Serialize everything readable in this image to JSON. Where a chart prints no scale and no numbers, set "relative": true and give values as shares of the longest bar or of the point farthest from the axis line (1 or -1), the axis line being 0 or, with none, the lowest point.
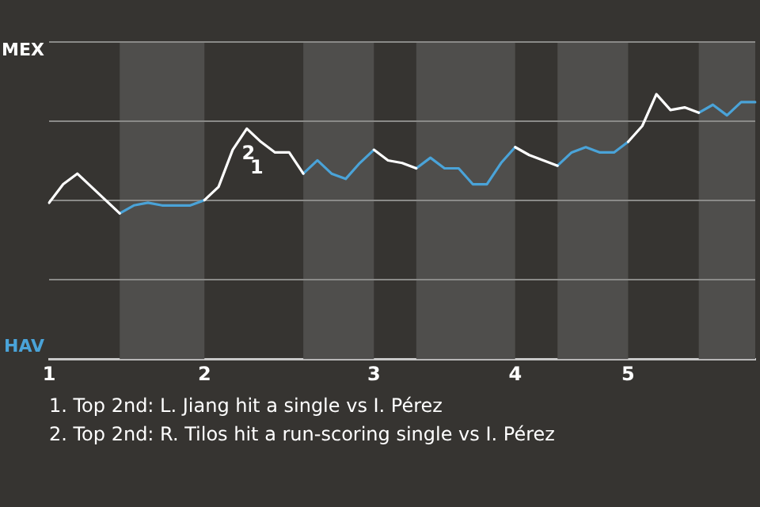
{
  "chart_data": {
    "type": "line",
    "relative": true,
    "categories": [
      "1",
      null,
      null,
      null,
      null,
      null,
      null,
      null,
      null,
      null,
      null,
      "2",
      null,
      null,
      null,
      null,
      null,
      null,
      null,
      null,
      null,
      null,
      null,
      "3",
      null,
      null,
      null,
      null,
      null,
      null,
      null,
      null,
      null,
      "4",
      null,
      null,
      null,
      null,
      null,
      null,
      null,
      "5",
      null,
      null,
      null,
      null,
      null,
      null,
      null,
      null,
      null
    ],
    "series": [
      {
        "name": "MEX",
        "color": "#ffffff",
        "values": [
          0.59,
          0.66,
          0.7,
          0.65,
          0.6,
          0.55,
          null,
          null,
          null,
          null,
          null,
          0.6,
          0.65,
          0.79,
          0.87,
          0.82,
          0.78,
          0.78,
          0.7,
          null,
          null,
          null,
          null,
          0.79,
          0.75,
          0.74,
          0.72,
          null,
          null,
          null,
          null,
          null,
          null,
          0.8,
          0.77,
          0.75,
          0.73,
          null,
          null,
          null,
          null,
          0.82,
          0.88,
          1,
          0.94,
          0.95,
          0.93,
          null,
          null,
          null,
          null
        ]
      },
      {
        "name": "HAV",
        "color": "#4aa3d8",
        "values": [
          null,
          null,
          null,
          null,
          null,
          0.55,
          0.58,
          0.59,
          0.58,
          0.58,
          0.58,
          0.6,
          null,
          null,
          null,
          null,
          null,
          null,
          0.7,
          0.75,
          0.7,
          0.68,
          0.74,
          0.79,
          null,
          null,
          0.72,
          0.76,
          0.72,
          0.72,
          0.66,
          0.66,
          0.74,
          0.8,
          null,
          null,
          0.73,
          0.78,
          0.8,
          0.78,
          0.78,
          0.82,
          null,
          null,
          null,
          null,
          0.93,
          0.96,
          0.92,
          0.97,
          0.97
        ]
      }
    ],
    "annotations": [
      {
        "text": "1",
        "y": 0.79
      },
      {
        "text": "2",
        "y": 0.87
      },
      "1. Top 2nd: L. Jiang hit a single vs I. Pérez",
      "2. Top 2nd: R. Tilos hit a run-scoring single vs I. Pérez"
    ],
    "grid": "y",
    "legend": "left",
    "marker": "none",
    "line_style": "solid"
  }
}
